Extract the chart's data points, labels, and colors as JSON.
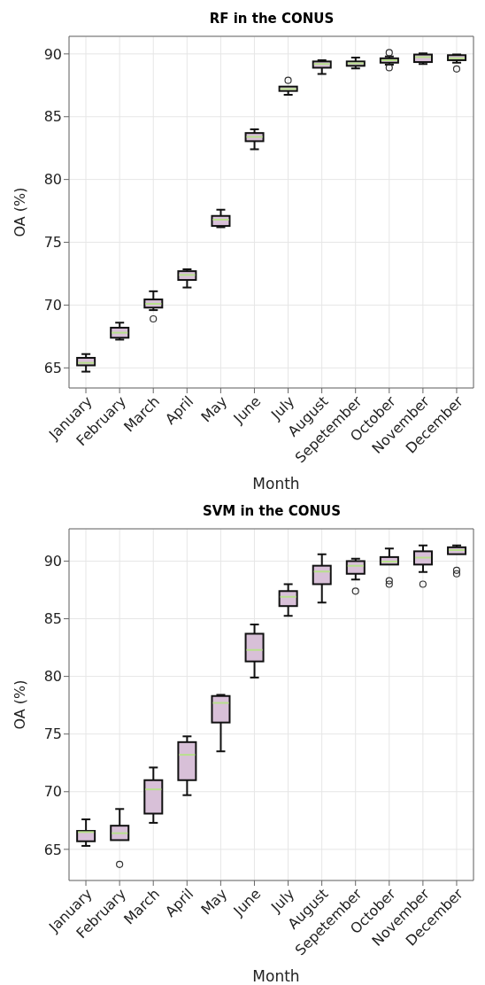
{
  "chart_data": [
    {
      "type": "box",
      "title": "RF in the CONUS",
      "xlabel": "Month",
      "ylabel": "OA (%)",
      "categories": [
        "January",
        "February",
        "March",
        "April",
        "May",
        "June",
        "July",
        "August",
        "Sepetember",
        "October",
        "November",
        "December"
      ],
      "ylim": [
        63.4,
        91.4
      ],
      "yticks": [
        65,
        70,
        75,
        80,
        85,
        90
      ],
      "grid": true,
      "series": [
        {
          "color": "#d8c0d8",
          "boxes": [
            {
              "low": 64.7,
              "q1": 65.2,
              "median": 65.4,
              "q3": 65.8,
              "high": 66.1
            },
            {
              "low": 67.25,
              "q1": 67.4,
              "median": 67.8,
              "q3": 68.2,
              "high": 68.6
            },
            {
              "low": 69.6,
              "q1": 69.8,
              "median": 70.1,
              "q3": 70.45,
              "high": 71.1,
              "outliers": [
                68.9
              ]
            },
            {
              "low": 71.4,
              "q1": 72.0,
              "median": 72.4,
              "q3": 72.7,
              "high": 72.85
            },
            {
              "low": 76.2,
              "q1": 76.3,
              "median": 76.8,
              "q3": 77.1,
              "high": 77.6
            },
            {
              "low": 82.4,
              "q1": 83.05,
              "median": 83.4,
              "q3": 83.7,
              "high": 84.0
            },
            {
              "low": 86.75,
              "q1": 87.05,
              "median": 87.2,
              "q3": 87.4,
              "high": 87.4,
              "outliers": [
                87.9
              ]
            },
            {
              "low": 88.4,
              "q1": 88.9,
              "median": 89.2,
              "q3": 89.4,
              "high": 89.5
            },
            {
              "low": 88.85,
              "q1": 89.05,
              "median": 89.25,
              "q3": 89.4,
              "high": 89.7
            },
            {
              "low": 89.15,
              "q1": 89.3,
              "median": 89.5,
              "q3": 89.65,
              "high": 89.8,
              "outliers": [
                90.1,
                88.9
              ]
            },
            {
              "low": 89.2,
              "q1": 89.35,
              "median": 89.75,
              "q3": 89.95,
              "high": 90.05
            },
            {
              "low": 89.3,
              "q1": 89.5,
              "median": 89.65,
              "q3": 89.9,
              "high": 89.95,
              "outliers": [
                88.8
              ]
            }
          ]
        }
      ]
    },
    {
      "type": "box",
      "title": "SVM in the CONUS",
      "xlabel": "Month",
      "ylabel": "OA (%)",
      "categories": [
        "January",
        "February",
        "March",
        "April",
        "May",
        "June",
        "July",
        "August",
        "Sepetember",
        "October",
        "November",
        "December"
      ],
      "ylim": [
        62.3,
        92.8
      ],
      "yticks": [
        65,
        70,
        75,
        80,
        85,
        90
      ],
      "grid": true,
      "series": [
        {
          "color": "#d8c0d8",
          "boxes": [
            {
              "low": 65.3,
              "q1": 65.7,
              "median": 66.5,
              "q3": 66.6,
              "high": 67.6
            },
            {
              "low": 65.8,
              "q1": 65.8,
              "median": 66.4,
              "q3": 67.05,
              "high": 68.5,
              "outliers": [
                63.7
              ]
            },
            {
              "low": 67.3,
              "q1": 68.1,
              "median": 70.2,
              "q3": 71.0,
              "high": 72.1
            },
            {
              "low": 69.7,
              "q1": 71.0,
              "median": 73.2,
              "q3": 74.3,
              "high": 74.8
            },
            {
              "low": 73.5,
              "q1": 76.0,
              "median": 77.7,
              "q3": 78.3,
              "high": 78.4
            },
            {
              "low": 79.9,
              "q1": 81.3,
              "median": 82.3,
              "q3": 83.7,
              "high": 84.5
            },
            {
              "low": 85.25,
              "q1": 86.1,
              "median": 86.9,
              "q3": 87.4,
              "high": 88.0
            },
            {
              "low": 86.4,
              "q1": 88.0,
              "median": 89.1,
              "q3": 89.6,
              "high": 90.6
            },
            {
              "low": 88.4,
              "q1": 88.9,
              "median": 89.6,
              "q3": 90.0,
              "high": 90.2,
              "outliers": [
                87.4
              ]
            },
            {
              "low": 89.7,
              "q1": 89.7,
              "median": 89.95,
              "q3": 90.35,
              "high": 91.1,
              "outliers": [
                88.3,
                88.0
              ]
            },
            {
              "low": 89.05,
              "q1": 89.7,
              "median": 90.3,
              "q3": 90.85,
              "high": 91.35,
              "outliers": [
                88.0
              ]
            },
            {
              "low": 90.6,
              "q1": 90.6,
              "median": 90.95,
              "q3": 91.2,
              "high": 91.35,
              "outliers": [
                89.2,
                88.9
              ]
            }
          ]
        }
      ]
    }
  ]
}
